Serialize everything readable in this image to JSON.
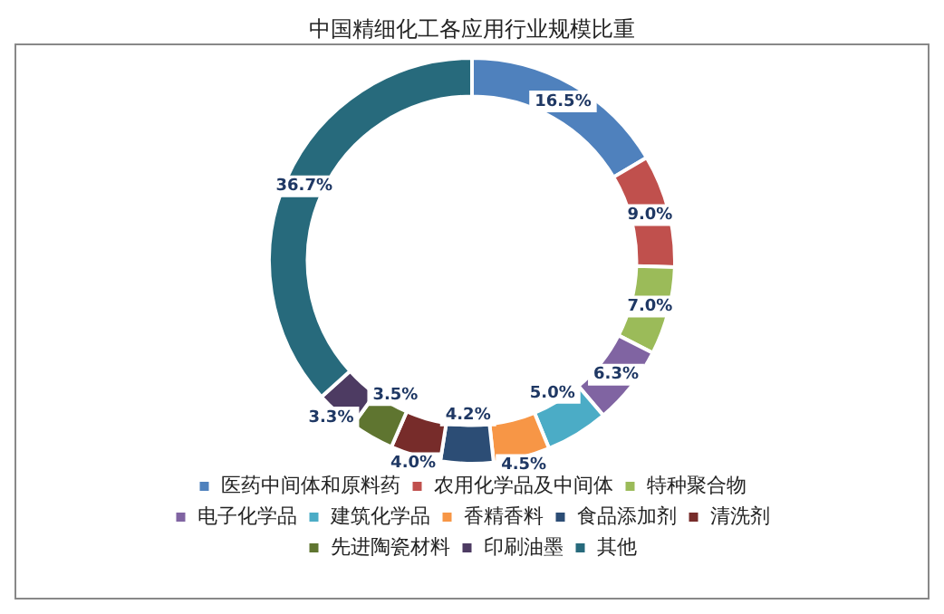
{
  "chart_data": {
    "type": "donut",
    "title": "中国精细化工各应用行业规模比重",
    "categories": [
      "医药中间体和原料药",
      "农用化学品及中间体",
      "特种聚合物",
      "电子化学品",
      "建筑化学品",
      "香精香料",
      "食品添加剂",
      "清洗剂",
      "先进陶瓷材料",
      "印刷油墨",
      "其他"
    ],
    "values": [
      16.5,
      9.0,
      7.0,
      6.3,
      5.0,
      4.5,
      4.2,
      4.0,
      3.5,
      3.3,
      36.7
    ],
    "value_labels": [
      "16.5%",
      "9.0%",
      "7.0%",
      "6.3%",
      "5.0%",
      "4.5%",
      "4.2%",
      "4.0%",
      "3.5%",
      "3.3%",
      "36.7%"
    ],
    "colors": [
      "#4f81bd",
      "#c0504d",
      "#9bbb59",
      "#8064a2",
      "#4bacc6",
      "#f79646",
      "#2c4d75",
      "#772c2a",
      "#5f7530",
      "#4d3b62",
      "#276a7c"
    ],
    "legend": "bottom"
  }
}
